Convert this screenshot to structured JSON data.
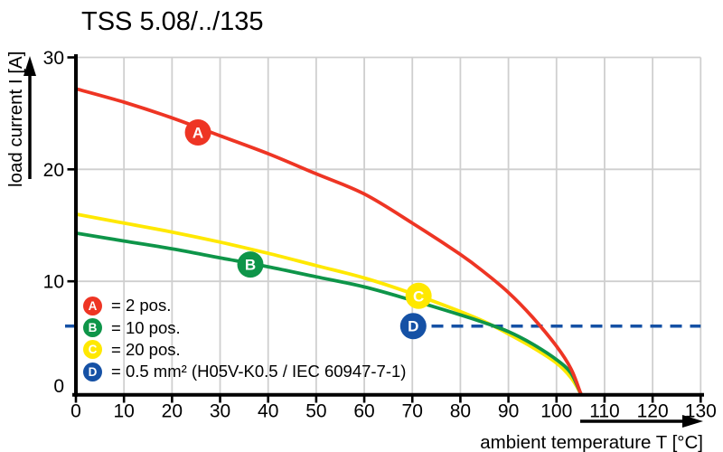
{
  "title": "TSS 5.08/../135",
  "chart_data": {
    "type": "line",
    "title": "TSS 5.08/../135",
    "xlabel": "ambient temperature T [°C]",
    "ylabel": "load current I [A]",
    "xlim": [
      0,
      130
    ],
    "ylim": [
      0,
      30
    ],
    "xticks": [
      0,
      10,
      20,
      30,
      40,
      50,
      60,
      70,
      80,
      90,
      100,
      110,
      120,
      130
    ],
    "yticks": [
      0,
      10,
      20,
      30
    ],
    "grid": true,
    "grid_color": "#cfcfcf",
    "legend_position": "inside-bottom-left",
    "series": [
      {
        "key": "A",
        "name": "2 pos.",
        "legend": "= 2 pos.",
        "color": "#ee3524",
        "style": "solid",
        "marker": {
          "t": 25.4,
          "i": 23.3
        },
        "points": [
          [
            0,
            27.2
          ],
          [
            10,
            26.0
          ],
          [
            20,
            24.6
          ],
          [
            30,
            23.0
          ],
          [
            40,
            21.4
          ],
          [
            50,
            19.6
          ],
          [
            60,
            17.8
          ],
          [
            70,
            15.2
          ],
          [
            80,
            12.4
          ],
          [
            85,
            10.8
          ],
          [
            90,
            9.0
          ],
          [
            95,
            6.8
          ],
          [
            100,
            4.2
          ],
          [
            103,
            2.2
          ],
          [
            105,
            0
          ]
        ]
      },
      {
        "key": "B",
        "name": "10 pos.",
        "legend": "= 10 pos.",
        "color": "#0e9549",
        "style": "solid",
        "marker": {
          "t": 36.3,
          "i": 11.5
        },
        "points": [
          [
            0,
            14.3
          ],
          [
            10,
            13.6
          ],
          [
            20,
            12.9
          ],
          [
            30,
            12.1
          ],
          [
            40,
            11.3
          ],
          [
            50,
            10.4
          ],
          [
            60,
            9.5
          ],
          [
            70,
            8.3
          ],
          [
            80,
            7.0
          ],
          [
            85,
            6.3
          ],
          [
            90,
            5.5
          ],
          [
            95,
            4.4
          ],
          [
            100,
            3.0
          ],
          [
            103,
            1.8
          ],
          [
            105,
            0
          ]
        ]
      },
      {
        "key": "C",
        "name": "20 pos.",
        "legend": "= 20 pos.",
        "color": "#ffe800",
        "style": "solid",
        "marker": {
          "t": 71.3,
          "i": 8.7
        },
        "points": [
          [
            0,
            16.0
          ],
          [
            10,
            15.2
          ],
          [
            20,
            14.4
          ],
          [
            30,
            13.5
          ],
          [
            40,
            12.5
          ],
          [
            50,
            11.4
          ],
          [
            60,
            10.3
          ],
          [
            70,
            8.9
          ],
          [
            80,
            7.3
          ],
          [
            85,
            6.4
          ],
          [
            90,
            5.3
          ],
          [
            95,
            4.1
          ],
          [
            100,
            2.7
          ],
          [
            103,
            1.4
          ],
          [
            105,
            0
          ]
        ]
      },
      {
        "key": "D",
        "name": "0.5 mm² (H05V-K0.5 / IEC 60947-7-1)",
        "legend": "= 0.5 mm² (H05V-K0.5 / IEC 60947-7-1)",
        "color": "#1551a5",
        "style": "dashed",
        "value": 6,
        "marker": {
          "t": 70.2,
          "i": 6
        },
        "points": [
          [
            74,
            6
          ],
          [
            130,
            6
          ]
        ],
        "axis_tick_at": 6
      }
    ]
  }
}
